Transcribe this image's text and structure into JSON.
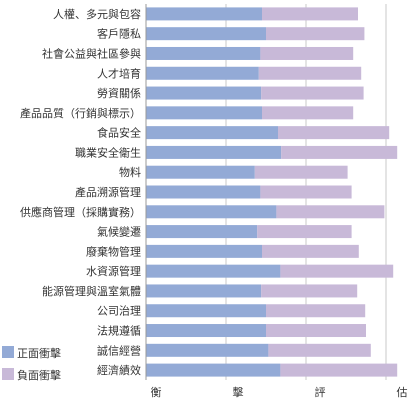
{
  "chart_data": {
    "type": "bar",
    "orientation": "horizontal",
    "stacked": true,
    "categories": [
      "人權、多元與包容",
      "客戶隱私",
      "社會公益與社區參與",
      "人才培育",
      "勞資關係",
      "產品品質（行銷與標示）",
      "食品安全",
      "職業安全衛生",
      "物料",
      "產品溯源管理",
      "供應商管理（採購實務）",
      "氣候變遷",
      "廢棄物管理",
      "水資源管理",
      "能源管理與溫室氣體",
      "公司治理",
      "法規遵循",
      "誠信經營",
      "經濟績效"
    ],
    "series": [
      {
        "name": "正面衝擊",
        "color": "#93aad6",
        "values": [
          1.45,
          1.5,
          1.43,
          1.41,
          1.44,
          1.45,
          1.65,
          1.69,
          1.36,
          1.43,
          1.63,
          1.39,
          1.45,
          1.68,
          1.44,
          1.5,
          1.5,
          1.53,
          1.68
        ]
      },
      {
        "name": "負面衝擊",
        "color": "#c8b9d8",
        "values": [
          1.2,
          1.23,
          1.16,
          1.28,
          1.28,
          1.14,
          1.39,
          1.45,
          1.16,
          1.14,
          1.35,
          1.18,
          1.21,
          1.41,
          1.2,
          1.24,
          1.25,
          1.28,
          1.46
        ]
      }
    ],
    "xlabel": [
      "衡",
      "擊",
      "評",
      "估"
    ],
    "xlim": [
      0,
      3.25
    ],
    "grid": true,
    "legend": "bottom-left"
  }
}
